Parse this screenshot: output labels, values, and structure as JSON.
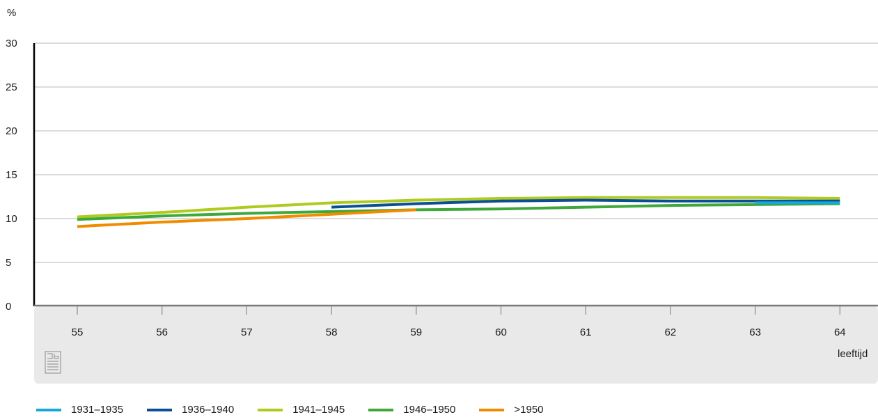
{
  "chart_data": {
    "type": "line",
    "ylabel": "%",
    "xlabel": "leeftijd",
    "ylim": [
      0,
      30
    ],
    "yticks": [
      0,
      5,
      10,
      15,
      20,
      25,
      30
    ],
    "xticks": [
      55,
      56,
      57,
      58,
      59,
      60,
      61,
      62,
      63,
      64
    ],
    "grid": "horizontal",
    "legend_position": "bottom",
    "series": [
      {
        "name": "1931–1935",
        "color": "#16a9d6",
        "x": [
          63,
          64
        ],
        "y": [
          11.8,
          11.8
        ]
      },
      {
        "name": "1936–1940",
        "color": "#0a4f96",
        "x": [
          58,
          59,
          60,
          61,
          62,
          63,
          64
        ],
        "y": [
          11.3,
          11.7,
          12.0,
          12.1,
          12.0,
          12.0,
          12.0
        ]
      },
      {
        "name": "1941–1945",
        "color": "#afcb1f",
        "x": [
          55,
          56,
          57,
          58,
          59,
          60,
          61,
          62,
          63,
          64
        ],
        "y": [
          10.2,
          10.7,
          11.3,
          11.8,
          12.1,
          12.3,
          12.4,
          12.4,
          12.4,
          12.3
        ]
      },
      {
        "name": "1946–1950",
        "color": "#3ea83a",
        "x": [
          55,
          56,
          57,
          58,
          59,
          60,
          61,
          62,
          63,
          64
        ],
        "y": [
          9.9,
          10.3,
          10.6,
          10.8,
          11.0,
          11.1,
          11.3,
          11.5,
          11.6,
          11.7
        ]
      },
      {
        "name": ">1950",
        "color": "#f08c00",
        "x": [
          55,
          56,
          57,
          58,
          59
        ],
        "y": [
          9.1,
          9.6,
          10.0,
          10.5,
          11.0
        ]
      }
    ]
  }
}
